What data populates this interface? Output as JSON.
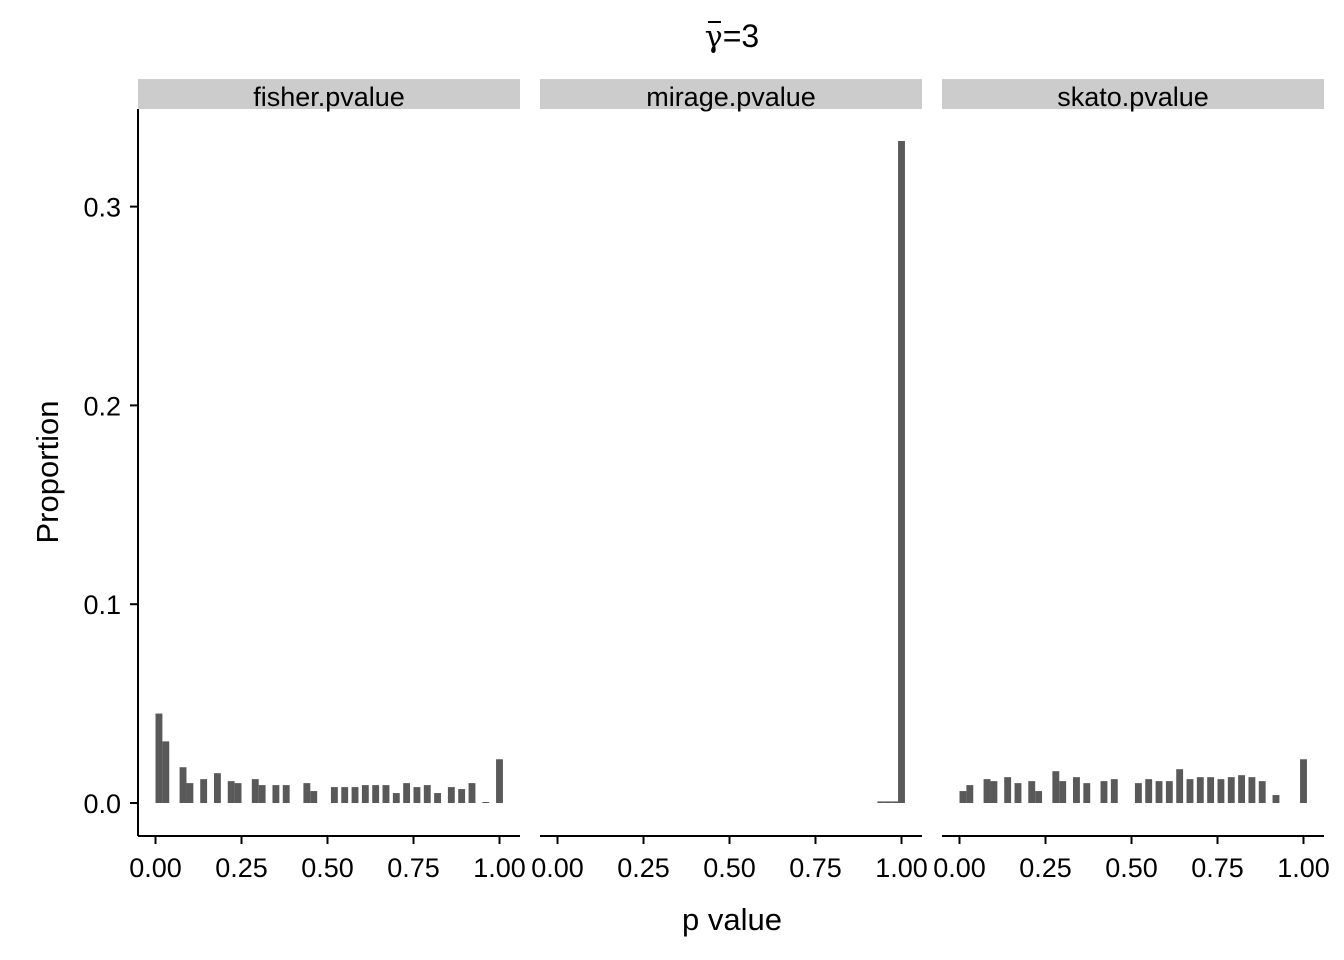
{
  "title": {
    "symbol": "γ",
    "suffix": "=3"
  },
  "chart_data": {
    "type": "bar",
    "xlabel": "p value",
    "ylabel": "Proportion",
    "ylim": [
      0,
      0.35
    ],
    "xlim": [
      -0.05,
      1.07
    ],
    "y_ticks": [
      0.0,
      0.1,
      0.2,
      0.3
    ],
    "y_tick_labels": [
      "0.0",
      "0.1",
      "0.2",
      "0.3"
    ],
    "x_ticks": [
      0.0,
      0.25,
      0.5,
      0.75,
      1.0
    ],
    "x_tick_labels": [
      "0.00",
      "0.25",
      "0.50",
      "0.75",
      "1.00"
    ],
    "bar_width": 0.02,
    "bar_color": "#595959",
    "strip_color": "#cccccc",
    "grid": false,
    "panels": [
      {
        "name": "fisher.pvalue",
        "bars": [
          {
            "x": 0.01,
            "y": 0.045
          },
          {
            "x": 0.03,
            "y": 0.031
          },
          {
            "x": 0.08,
            "y": 0.018
          },
          {
            "x": 0.1,
            "y": 0.01
          },
          {
            "x": 0.14,
            "y": 0.012
          },
          {
            "x": 0.18,
            "y": 0.015
          },
          {
            "x": 0.22,
            "y": 0.011
          },
          {
            "x": 0.24,
            "y": 0.01
          },
          {
            "x": 0.29,
            "y": 0.012
          },
          {
            "x": 0.31,
            "y": 0.009
          },
          {
            "x": 0.35,
            "y": 0.009
          },
          {
            "x": 0.38,
            "y": 0.009
          },
          {
            "x": 0.44,
            "y": 0.01
          },
          {
            "x": 0.46,
            "y": 0.006
          },
          {
            "x": 0.52,
            "y": 0.008
          },
          {
            "x": 0.55,
            "y": 0.008
          },
          {
            "x": 0.58,
            "y": 0.008
          },
          {
            "x": 0.61,
            "y": 0.009
          },
          {
            "x": 0.64,
            "y": 0.009
          },
          {
            "x": 0.67,
            "y": 0.009
          },
          {
            "x": 0.7,
            "y": 0.005
          },
          {
            "x": 0.73,
            "y": 0.01
          },
          {
            "x": 0.76,
            "y": 0.008
          },
          {
            "x": 0.79,
            "y": 0.009
          },
          {
            "x": 0.82,
            "y": 0.005
          },
          {
            "x": 0.86,
            "y": 0.008
          },
          {
            "x": 0.89,
            "y": 0.007
          },
          {
            "x": 0.92,
            "y": 0.01
          },
          {
            "x": 0.96,
            "y": 0.0005
          },
          {
            "x": 1.0,
            "y": 0.022
          }
        ]
      },
      {
        "name": "mirage.pvalue",
        "bars": [
          {
            "x": 0.94,
            "y": 0.0008
          },
          {
            "x": 0.96,
            "y": 0.0008
          },
          {
            "x": 0.98,
            "y": 0.0008
          },
          {
            "x": 1.0,
            "y": 0.333
          }
        ]
      },
      {
        "name": "skato.pvalue",
        "bars": [
          {
            "x": 0.01,
            "y": 0.006
          },
          {
            "x": 0.03,
            "y": 0.009
          },
          {
            "x": 0.08,
            "y": 0.012
          },
          {
            "x": 0.1,
            "y": 0.011
          },
          {
            "x": 0.14,
            "y": 0.013
          },
          {
            "x": 0.17,
            "y": 0.01
          },
          {
            "x": 0.21,
            "y": 0.011
          },
          {
            "x": 0.23,
            "y": 0.006
          },
          {
            "x": 0.28,
            "y": 0.016
          },
          {
            "x": 0.3,
            "y": 0.011
          },
          {
            "x": 0.34,
            "y": 0.013
          },
          {
            "x": 0.37,
            "y": 0.01
          },
          {
            "x": 0.42,
            "y": 0.011
          },
          {
            "x": 0.45,
            "y": 0.012
          },
          {
            "x": 0.52,
            "y": 0.01
          },
          {
            "x": 0.55,
            "y": 0.012
          },
          {
            "x": 0.58,
            "y": 0.011
          },
          {
            "x": 0.61,
            "y": 0.011
          },
          {
            "x": 0.64,
            "y": 0.017
          },
          {
            "x": 0.67,
            "y": 0.012
          },
          {
            "x": 0.7,
            "y": 0.013
          },
          {
            "x": 0.73,
            "y": 0.013
          },
          {
            "x": 0.76,
            "y": 0.012
          },
          {
            "x": 0.79,
            "y": 0.013
          },
          {
            "x": 0.82,
            "y": 0.014
          },
          {
            "x": 0.85,
            "y": 0.013
          },
          {
            "x": 0.88,
            "y": 0.011
          },
          {
            "x": 0.92,
            "y": 0.004
          },
          {
            "x": 1.0,
            "y": 0.022
          }
        ]
      }
    ]
  }
}
